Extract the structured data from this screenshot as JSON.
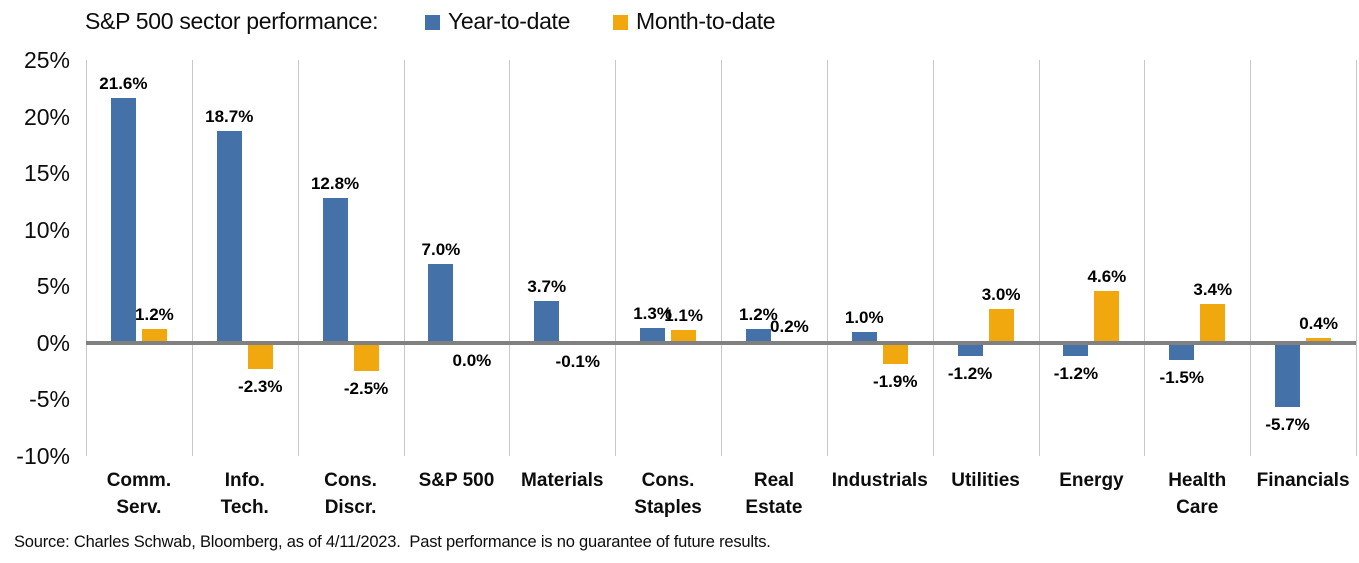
{
  "title": "S&P 500 sector performance:",
  "legend": [
    {
      "label": "Year-to-date",
      "color": "#4471A8"
    },
    {
      "label": "Month-to-date",
      "color": "#F0A80E"
    }
  ],
  "source_note": "Source: Charles Schwab, Bloomberg, as of 4/11/2023.  Past performance is no guarantee of future results.",
  "colors": {
    "ytd_bar": "#4471A8",
    "mtd_bar": "#F0A80E",
    "zero_axis": "#808080",
    "gridline": "#C7C7C7",
    "text": "#0D0D0D"
  },
  "chart_data": {
    "type": "bar",
    "title": "S&P 500 sector performance",
    "categories": [
      "Comm.\nServ.",
      "Info.\nTech.",
      "Cons.\nDiscr.",
      "S&P 500",
      "Materials",
      "Cons.\nStaples",
      "Real\nEstate",
      "Industrials",
      "Utilities",
      "Energy",
      "Health\nCare",
      "Financials"
    ],
    "series": [
      {
        "name": "Year-to-date",
        "color": "#4471A8",
        "values": [
          21.6,
          18.7,
          12.8,
          7.0,
          3.7,
          1.3,
          1.2,
          1.0,
          -1.2,
          -1.2,
          -1.5,
          -5.7
        ],
        "labels": [
          "21.6%",
          "18.7%",
          "12.8%",
          "7.0%",
          "3.7%",
          "1.3%",
          "1.2%",
          "1.0%",
          "-1.2%",
          "-1.2%",
          "-1.5%",
          "-5.7%"
        ]
      },
      {
        "name": "Month-to-date",
        "color": "#F0A80E",
        "values": [
          1.2,
          -2.3,
          -2.5,
          0.0,
          -0.1,
          1.1,
          0.2,
          -1.9,
          3.0,
          4.6,
          3.4,
          0.4
        ],
        "labels": [
          "1.2%",
          "-2.3%",
          "-2.5%",
          "0.0%",
          "-0.1%",
          "1.1%",
          "0.2%",
          "-1.9%",
          "3.0%",
          "4.6%",
          "3.4%",
          "0.4%"
        ]
      }
    ],
    "xlabel": "",
    "ylabel": "",
    "ylim": [
      -10,
      25
    ],
    "yticks": [
      25,
      20,
      15,
      10,
      5,
      0,
      -5,
      -10
    ],
    "ytick_labels": [
      "25%",
      "20%",
      "15%",
      "10%",
      "5%",
      "0%",
      "-5%",
      "-10%"
    ],
    "grid": "vertical-only",
    "legend_position": "top",
    "value_labels_shown": true
  }
}
